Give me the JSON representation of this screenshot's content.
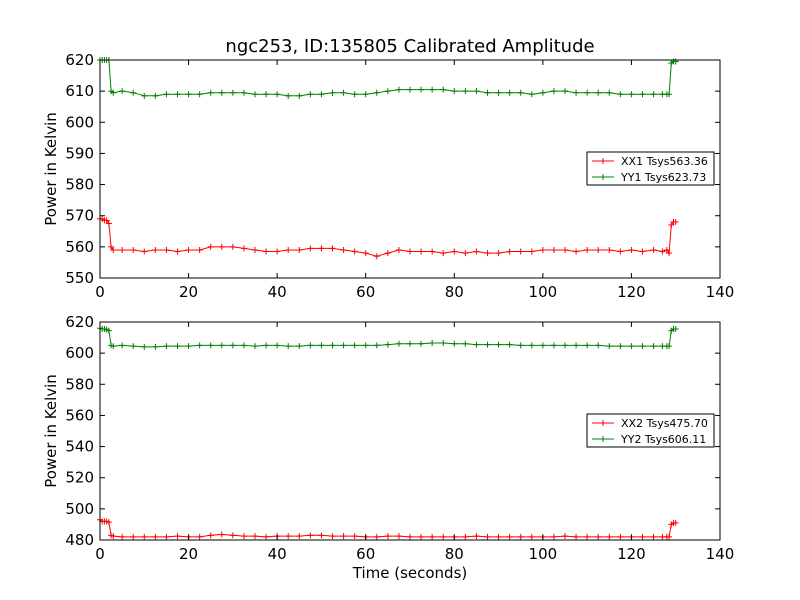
{
  "chart_data": [
    {
      "type": "line",
      "title": "ngc253, ID:135805 Calibrated Amplitude",
      "xlabel": "",
      "ylabel": "Power in Kelvin",
      "xlim": [
        0,
        140
      ],
      "ylim": [
        550,
        620
      ],
      "xticks": [
        0,
        20,
        40,
        60,
        80,
        100,
        120,
        140
      ],
      "yticks": [
        550,
        560,
        570,
        580,
        590,
        600,
        610,
        620
      ],
      "grid": false,
      "legend_position": "center-right",
      "series": [
        {
          "name": "XX1 Tsys563.36",
          "color": "#ff0000",
          "marker": "+",
          "x": [
            0,
            0.5,
            1,
            1.5,
            2,
            2.5,
            3,
            5,
            7.5,
            10,
            12.5,
            15,
            17.5,
            20,
            22.5,
            25,
            27.5,
            30,
            32.5,
            35,
            37.5,
            40,
            42.5,
            45,
            47.5,
            50,
            52.5,
            55,
            57.5,
            60,
            62.5,
            65,
            67.5,
            70,
            72.5,
            75,
            77.5,
            80,
            82.5,
            85,
            87.5,
            90,
            92.5,
            95,
            97.5,
            100,
            102.5,
            105,
            107.5,
            110,
            112.5,
            115,
            117.5,
            120,
            122.5,
            125,
            127,
            128,
            128.5,
            129,
            129.5,
            130
          ],
          "y": [
            569,
            569,
            568.5,
            568.5,
            567.5,
            560,
            559,
            559,
            559,
            558.5,
            559,
            559,
            558.5,
            559,
            559,
            560,
            560,
            560,
            559.5,
            559,
            558.5,
            558.5,
            559,
            559,
            559.5,
            559.5,
            559.5,
            559,
            558.5,
            558,
            557,
            558,
            559,
            558.5,
            558.5,
            558.5,
            558,
            558.5,
            558,
            558.5,
            558,
            558,
            558.5,
            558.5,
            558.5,
            559,
            559,
            559,
            558.5,
            559,
            559,
            559,
            558.5,
            559,
            558.5,
            559,
            558.5,
            559,
            558,
            567,
            568,
            568
          ]
        },
        {
          "name": "YY1 Tsys623.73",
          "color": "#008000",
          "marker": "+",
          "x": [
            0,
            0.5,
            1,
            1.5,
            2,
            2.5,
            3,
            5,
            7.5,
            10,
            12.5,
            15,
            17.5,
            20,
            22.5,
            25,
            27.5,
            30,
            32.5,
            35,
            37.5,
            40,
            42.5,
            45,
            47.5,
            50,
            52.5,
            55,
            57.5,
            60,
            62.5,
            65,
            67.5,
            70,
            72.5,
            75,
            77.5,
            80,
            82.5,
            85,
            87.5,
            90,
            92.5,
            95,
            97.5,
            100,
            102.5,
            105,
            107.5,
            110,
            112.5,
            115,
            117.5,
            120,
            122.5,
            125,
            127,
            128,
            128.5,
            129,
            129.5,
            130
          ],
          "y": [
            620,
            620,
            620,
            620,
            620,
            610,
            609.5,
            610,
            609.5,
            608.5,
            608.5,
            609,
            609,
            609,
            609,
            609.5,
            609.5,
            609.5,
            609.5,
            609,
            609,
            609,
            608.5,
            608.5,
            609,
            609,
            609.5,
            609.5,
            609,
            609,
            609.5,
            610,
            610.5,
            610.5,
            610.5,
            610.5,
            610.5,
            610,
            610,
            610,
            609.5,
            609.5,
            609.5,
            609.5,
            609,
            609.5,
            610,
            610,
            609.5,
            609.5,
            609.5,
            609.5,
            609,
            609,
            609,
            609,
            609,
            609,
            609,
            619,
            619.5,
            619.5
          ]
        }
      ]
    },
    {
      "type": "line",
      "title": "",
      "xlabel": "Time (seconds)",
      "ylabel": "Power in Kelvin",
      "xlim": [
        0,
        140
      ],
      "ylim": [
        480,
        620
      ],
      "xticks": [
        0,
        20,
        40,
        60,
        80,
        100,
        120,
        140
      ],
      "yticks": [
        480,
        500,
        520,
        540,
        560,
        580,
        600,
        620
      ],
      "grid": false,
      "legend_position": "center-right",
      "series": [
        {
          "name": "XX2 Tsys475.70",
          "color": "#ff0000",
          "marker": "+",
          "x": [
            0,
            0.5,
            1,
            1.5,
            2,
            2.5,
            3,
            5,
            7.5,
            10,
            12.5,
            15,
            17.5,
            20,
            22.5,
            25,
            27.5,
            30,
            32.5,
            35,
            37.5,
            40,
            42.5,
            45,
            47.5,
            50,
            52.5,
            55,
            57.5,
            60,
            62.5,
            65,
            67.5,
            70,
            72.5,
            75,
            77.5,
            80,
            82.5,
            85,
            87.5,
            90,
            92.5,
            95,
            97.5,
            100,
            102.5,
            105,
            107.5,
            110,
            112.5,
            115,
            117.5,
            120,
            122.5,
            125,
            127,
            128,
            128.5,
            129,
            129.5,
            130
          ],
          "y": [
            493,
            492,
            492,
            492,
            491.5,
            483,
            482.5,
            482,
            482,
            482,
            482,
            482,
            482.5,
            482,
            482,
            483,
            483.5,
            483,
            482.5,
            482.5,
            482,
            482.5,
            482.5,
            482.5,
            483,
            483,
            482.5,
            482.5,
            482.5,
            482,
            482,
            482.5,
            482.5,
            482,
            482,
            482,
            482,
            482,
            482,
            482.5,
            482,
            482,
            482,
            482,
            482,
            482,
            482,
            482.5,
            482,
            482,
            482,
            482,
            482,
            482,
            482,
            482,
            482,
            482,
            482,
            490,
            491,
            491
          ]
        },
        {
          "name": "YY2 Tsys606.11",
          "color": "#008000",
          "marker": "+",
          "x": [
            0,
            0.5,
            1,
            1.5,
            2,
            2.5,
            3,
            5,
            7.5,
            10,
            12.5,
            15,
            17.5,
            20,
            22.5,
            25,
            27.5,
            30,
            32.5,
            35,
            37.5,
            40,
            42.5,
            45,
            47.5,
            50,
            52.5,
            55,
            57.5,
            60,
            62.5,
            65,
            67.5,
            70,
            72.5,
            75,
            77.5,
            80,
            82.5,
            85,
            87.5,
            90,
            92.5,
            95,
            97.5,
            100,
            102.5,
            105,
            107.5,
            110,
            112.5,
            115,
            117.5,
            120,
            122.5,
            125,
            127,
            128,
            128.5,
            129,
            129.5,
            130
          ],
          "y": [
            616,
            615.5,
            615.5,
            615,
            614.5,
            605,
            604.5,
            605,
            604.5,
            604,
            604,
            604.5,
            604.5,
            604.5,
            605,
            605,
            605,
            605,
            605,
            604.5,
            605,
            605,
            604.5,
            604.5,
            605,
            605,
            605,
            605,
            605,
            605,
            605,
            605.5,
            606,
            606,
            606,
            606.5,
            606.5,
            606,
            606,
            605.5,
            605.5,
            605.5,
            605.5,
            605,
            605,
            605,
            605,
            605,
            605,
            605,
            605,
            604.5,
            604.5,
            604.5,
            604.5,
            604.5,
            604.5,
            604.5,
            604.5,
            614.5,
            615.5,
            615.5
          ]
        }
      ]
    }
  ]
}
